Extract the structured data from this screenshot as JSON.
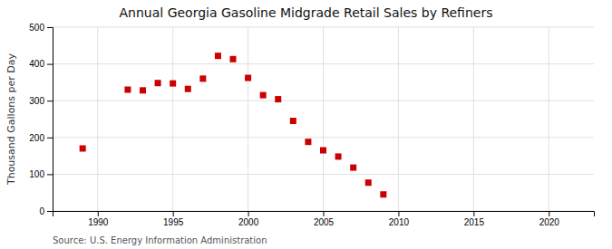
{
  "chart_data": {
    "type": "scatter",
    "title": "Annual Georgia Gasoline Midgrade Retail Sales by Refiners",
    "ylabel": "Thousand Gallons per Day",
    "source": "Source: U.S. Energy Information Administration",
    "x": [
      1989,
      1992,
      1993,
      1994,
      1995,
      1996,
      1997,
      1998,
      1999,
      2000,
      2001,
      2002,
      2003,
      2004,
      2005,
      2006,
      2007,
      2008,
      2009
    ],
    "values": [
      170,
      330,
      328,
      348,
      347,
      332,
      360,
      422,
      413,
      362,
      315,
      304,
      245,
      188,
      165,
      148,
      118,
      77,
      45
    ],
    "color": "#cc0000",
    "marker": "square",
    "xlim": [
      1987,
      2023
    ],
    "ylim": [
      0,
      500
    ],
    "xticks": [
      1990,
      1995,
      2000,
      2005,
      2010,
      2015,
      2020
    ],
    "yticks": [
      0,
      100,
      200,
      300,
      400,
      500
    ],
    "grid": true
  }
}
